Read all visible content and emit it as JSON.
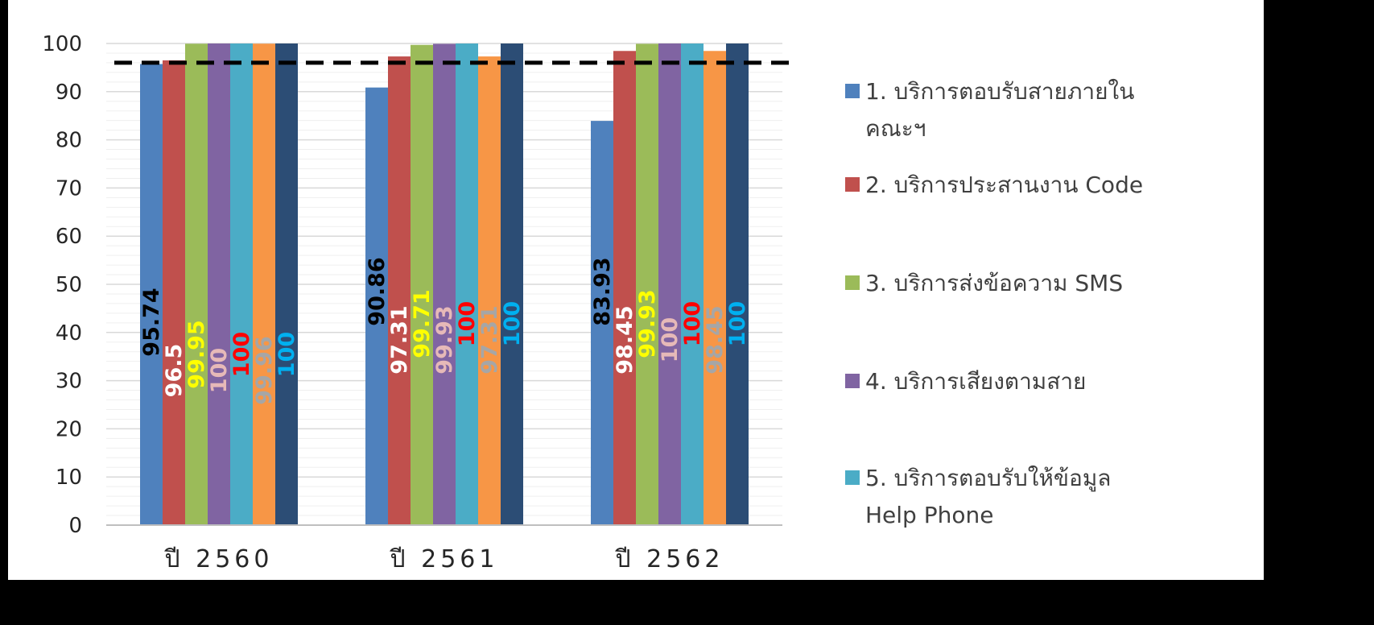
{
  "chart_data": {
    "type": "bar",
    "categories": [
      "ปี 2560",
      "ปี 2561",
      "ปี 2562"
    ],
    "ylim": [
      0,
      100
    ],
    "yticks": [
      "0",
      "10",
      "20",
      "30",
      "40",
      "50",
      "60",
      "70",
      "80",
      "90",
      "100"
    ],
    "target_line": 96,
    "series": [
      {
        "name": "1. บริการตอบรับสายภายในคณะฯ",
        "color": "#4F81BD",
        "label_color": "#000000",
        "values": [
          95.74,
          90.86,
          83.93
        ],
        "labels": [
          "95.74",
          "90.86",
          "83.93"
        ]
      },
      {
        "name": "2. บริการประสานงาน Code",
        "color": "#C0504D",
        "label_color": "#FFFFFF",
        "values": [
          96.5,
          97.31,
          98.45
        ],
        "labels": [
          "96.5",
          "97.31",
          "98.45"
        ]
      },
      {
        "name": "3. บริการส่งข้อความ SMS",
        "color": "#9BBB59",
        "label_color": "#FFFF00",
        "values": [
          99.95,
          99.71,
          99.93
        ],
        "labels": [
          "99.95",
          "99.71",
          "99.93"
        ]
      },
      {
        "name": "4. บริการเสียงตามสาย",
        "color": "#8064A2",
        "label_color": "#E6B9B8",
        "values": [
          100,
          99.93,
          100
        ],
        "labels": [
          "100",
          "99.93",
          "100"
        ]
      },
      {
        "name": "5. บริการตอบรับให้ข้อมูล Help Phone",
        "color": "#4BACC6",
        "label_color": "#FF0000",
        "values": [
          100,
          100,
          100
        ],
        "labels": [
          "100",
          "100",
          "100"
        ]
      },
      {
        "color": "#F79646",
        "label_color": "#A6A6A6",
        "values": [
          99.96,
          97.31,
          98.45
        ],
        "labels": [
          "99.96",
          "97.31",
          "98.45"
        ]
      },
      {
        "color": "#2C4D75",
        "label_color": "#00B0F0",
        "values": [
          100,
          100,
          100
        ],
        "labels": [
          "100",
          "100",
          "100"
        ]
      }
    ]
  },
  "legend": [
    {
      "line1": "1. บริการตอบรับสายภายใน",
      "line2": "คณะฯ",
      "color": "#4F81BD"
    },
    {
      "line1": "2. บริการประสานงาน Code",
      "line2": "",
      "color": "#C0504D"
    },
    {
      "line1": "3. บริการส่งข้อความ SMS",
      "line2": "",
      "color": "#9BBB59"
    },
    {
      "line1": "4. บริการเสียงตามสาย",
      "line2": "",
      "color": "#8064A2"
    },
    {
      "line1": "5. บริการตอบรับให้ข้อมูล",
      "line2": "Help Phone",
      "color": "#4BACC6"
    }
  ]
}
